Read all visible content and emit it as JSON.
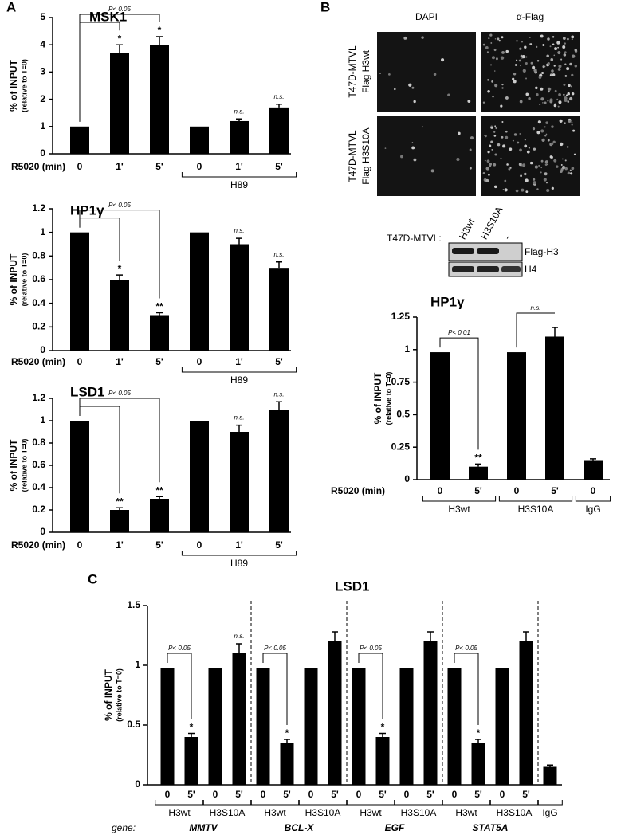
{
  "figure": {
    "panels": [
      "A",
      "B",
      "C"
    ],
    "image_columns": [
      "DAPI",
      "α-Flag"
    ],
    "image_rows": [
      {
        "line1": "T47D-MTVL",
        "line2": "Flag H3wt"
      },
      {
        "line1": "T47D-MTVL",
        "line2": "Flag H3S10A"
      }
    ],
    "blot": {
      "label": "T47D-MTVL:",
      "lanes": [
        "H3wt",
        "H3S10A",
        "-"
      ],
      "bands": [
        "Flag-H3",
        "H4"
      ]
    }
  },
  "chart_data": [
    {
      "type": "bar",
      "title": "MSK1",
      "ylabel": "% of INPUT",
      "ylabel_sub": "(relative to T=0)",
      "xlabel": "R5020 (min)",
      "color": "#000000",
      "ylim": [
        0,
        5
      ],
      "yticks": [
        0,
        1,
        2,
        3,
        4,
        5
      ],
      "groups": [
        {
          "label": null,
          "categories": [
            "0",
            "1'",
            "5'"
          ],
          "values": [
            1,
            3.7,
            4.0
          ],
          "errors": [
            null,
            0.3,
            0.3
          ],
          "marks": [
            null,
            "*",
            "*"
          ],
          "p_label": "P< 0.05"
        },
        {
          "label": "H89",
          "categories": [
            "0",
            "1'",
            "5'"
          ],
          "values": [
            1,
            1.2,
            1.7
          ],
          "errors": [
            null,
            0.08,
            0.12
          ],
          "marks": [
            null,
            "n.s.",
            "n.s."
          ]
        }
      ]
    },
    {
      "type": "bar",
      "title": "HP1γ",
      "ylabel": "% of INPUT",
      "ylabel_sub": "(relative to T=0)",
      "xlabel": "R5020 (min)",
      "color": "#000000",
      "ylim": [
        0,
        1.2
      ],
      "yticks": [
        0,
        0.2,
        0.4,
        0.6,
        0.8,
        1,
        1.2
      ],
      "groups": [
        {
          "label": null,
          "categories": [
            "0",
            "1'",
            "5'"
          ],
          "values": [
            1,
            0.6,
            0.3
          ],
          "errors": [
            null,
            0.04,
            0.02
          ],
          "marks": [
            null,
            "*",
            "**"
          ],
          "p_label": "P< 0.05"
        },
        {
          "label": "H89",
          "categories": [
            "0",
            "1'",
            "5'"
          ],
          "values": [
            1,
            0.9,
            0.7
          ],
          "errors": [
            null,
            0.05,
            0.05
          ],
          "marks": [
            null,
            "n.s.",
            "n.s."
          ]
        }
      ]
    },
    {
      "type": "bar",
      "title": "LSD1",
      "ylabel": "% of INPUT",
      "ylabel_sub": "(relative to T=0)",
      "xlabel": "R5020 (min)",
      "color": "#000000",
      "ylim": [
        0,
        1.2
      ],
      "yticks": [
        0,
        0.2,
        0.4,
        0.6,
        0.8,
        1,
        1.2
      ],
      "groups": [
        {
          "label": null,
          "categories": [
            "0",
            "1'",
            "5'"
          ],
          "values": [
            1,
            0.2,
            0.3
          ],
          "errors": [
            null,
            0.02,
            0.02
          ],
          "marks": [
            null,
            "**",
            "**"
          ],
          "p_label": "P< 0.05"
        },
        {
          "label": "H89",
          "categories": [
            "0",
            "1'",
            "5'"
          ],
          "values": [
            1,
            0.9,
            1.1
          ],
          "errors": [
            null,
            0.06,
            0.07
          ],
          "marks": [
            null,
            "n.s.",
            "n.s."
          ]
        }
      ]
    },
    {
      "type": "bar",
      "title": "HP1γ",
      "ylabel": "% of INPUT",
      "ylabel_sub": "(relative to T=0)",
      "xlabel": "R5020 (min)",
      "color": "#000000",
      "ylim": [
        0,
        1.25
      ],
      "yticks": [
        0,
        0.25,
        0.5,
        0.75,
        1,
        1.25
      ],
      "groups": [
        {
          "label": "H3wt",
          "categories": [
            "0",
            "5'"
          ],
          "values": [
            0.98,
            0.1
          ],
          "errors": [
            null,
            0.02
          ],
          "marks": [
            null,
            "**"
          ],
          "p_label": "P< 0.01"
        },
        {
          "label": "H3S10A",
          "categories": [
            "0",
            "5'"
          ],
          "values": [
            0.98,
            1.1
          ],
          "errors": [
            null,
            0.07
          ],
          "marks": [
            null,
            null
          ],
          "p_label": "n.s."
        },
        {
          "label": "IgG",
          "categories": [
            "0"
          ],
          "values": [
            0.15
          ],
          "errors": [
            0.01
          ],
          "marks": [
            null
          ]
        }
      ]
    },
    {
      "type": "bar",
      "title": "LSD1",
      "ylabel": "% of INPUT",
      "ylabel_sub": "(relative to T=0)",
      "section_label": "gene:",
      "color": "#000000",
      "ylim": [
        0,
        1.5
      ],
      "yticks": [
        0,
        0.5,
        1,
        1.5
      ],
      "sections": [
        "MMTV",
        "BCL-X",
        "EGF",
        "STAT5A"
      ],
      "groups": [
        {
          "label": "H3wt",
          "categories": [
            "0",
            "5'"
          ],
          "values": [
            0.98,
            0.4
          ],
          "errors": [
            null,
            0.03
          ],
          "marks": [
            null,
            "*"
          ],
          "p_label": "P< 0.05"
        },
        {
          "label": "H3S10A",
          "categories": [
            "0",
            "5'"
          ],
          "values": [
            0.98,
            1.1
          ],
          "errors": [
            null,
            0.08
          ],
          "marks": [
            null,
            "n.s."
          ]
        },
        {
          "label": "H3wt",
          "categories": [
            "0",
            "5'"
          ],
          "values": [
            0.98,
            0.35
          ],
          "errors": [
            null,
            0.03
          ],
          "marks": [
            null,
            "*"
          ],
          "p_label": "P< 0.05"
        },
        {
          "label": "H3S10A",
          "categories": [
            "0",
            "5'"
          ],
          "values": [
            0.98,
            1.2
          ],
          "errors": [
            null,
            0.08
          ],
          "marks": [
            null,
            null
          ]
        },
        {
          "label": "H3wt",
          "categories": [
            "0",
            "5'"
          ],
          "values": [
            0.98,
            0.4
          ],
          "errors": [
            null,
            0.03
          ],
          "marks": [
            null,
            "*"
          ],
          "p_label": "P< 0.05"
        },
        {
          "label": "H3S10A",
          "categories": [
            "0",
            "5'"
          ],
          "values": [
            0.98,
            1.2
          ],
          "errors": [
            null,
            0.08
          ],
          "marks": [
            null,
            null
          ]
        },
        {
          "label": "H3wt",
          "categories": [
            "0",
            "5'"
          ],
          "values": [
            0.98,
            0.35
          ],
          "errors": [
            null,
            0.03
          ],
          "marks": [
            null,
            "*"
          ],
          "p_label": "P< 0.05"
        },
        {
          "label": "H3S10A",
          "categories": [
            "0",
            "5'"
          ],
          "values": [
            0.98,
            1.2
          ],
          "errors": [
            null,
            0.08
          ],
          "marks": [
            null,
            null
          ]
        },
        {
          "label": "IgG",
          "categories": [
            null
          ],
          "values": [
            0.15
          ],
          "errors": [
            0.015
          ],
          "marks": [
            null
          ]
        }
      ]
    }
  ]
}
